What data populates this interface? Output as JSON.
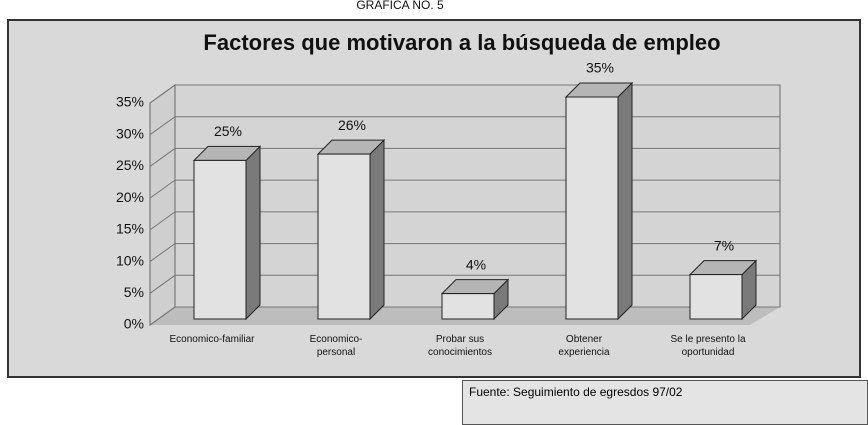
{
  "page_title": "GRAFICA NO. 5",
  "chart_data": {
    "type": "bar3d",
    "title": "Factores que motivaron a la búsqueda de empleo",
    "categories": [
      "Economico-familiar",
      "Economico-personal",
      "Probar sus conocimientos",
      "Obtener experiencia",
      "Se le presento la oportunidad"
    ],
    "values": [
      25,
      26,
      4,
      35,
      7
    ],
    "value_labels": [
      "25%",
      "26%",
      "4%",
      "35%",
      "7%"
    ],
    "color": "#e2e2e2",
    "ylim": [
      0,
      35
    ],
    "yticks": [
      {
        "value": 0,
        "label": "0%"
      },
      {
        "value": 5,
        "label": "5%"
      },
      {
        "value": 10,
        "label": "10%"
      },
      {
        "value": 15,
        "label": "15%"
      },
      {
        "value": 20,
        "label": "20%"
      },
      {
        "value": 25,
        "label": "25%"
      },
      {
        "value": 30,
        "label": "30%"
      },
      {
        "value": 35,
        "label": "35%"
      }
    ],
    "grid": true
  },
  "footnote": "Fuente: Seguimiento de egresdos 97/02"
}
